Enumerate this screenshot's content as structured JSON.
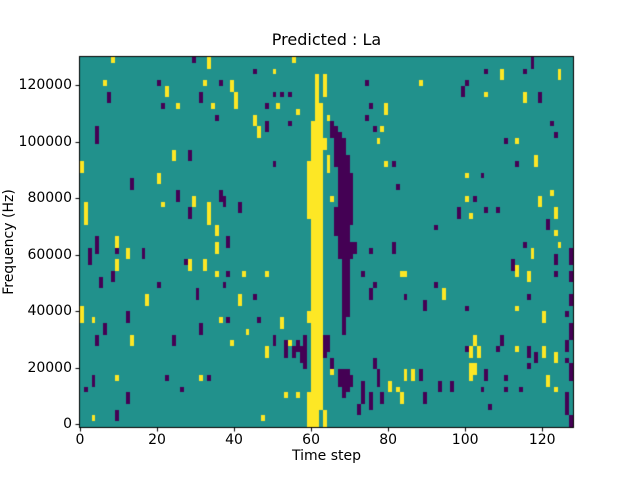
{
  "chart_data": {
    "type": "heatmap",
    "title": "Predicted : La",
    "xlabel": "Time step",
    "ylabel": "Frequency (Hz)",
    "grid_cols": 128,
    "grid_rows": 64,
    "xlim": [
      0,
      128
    ],
    "ylim": [
      -1024,
      130048
    ],
    "xticks": [
      0,
      20,
      40,
      60,
      80,
      100,
      120
    ],
    "yticks": [
      0,
      20000,
      40000,
      60000,
      80000,
      100000,
      120000
    ],
    "grid": false,
    "legend": "none",
    "colors": {
      "background": "#21918c",
      "low": "#440154",
      "high": "#fde725",
      "spine": "#000000",
      "figure_background": "#ffffff"
    },
    "cells": {
      "note": "runs are [column, first_row_from_top, last_row_from_top] on the 128x64 grid",
      "yellow_runs": [
        [
          61,
          3,
          63
        ],
        [
          62,
          8,
          60
        ],
        [
          60,
          11,
          63
        ],
        [
          63,
          3,
          6
        ],
        [
          63,
          14,
          15
        ],
        [
          63,
          61,
          63
        ],
        [
          59,
          18,
          27
        ],
        [
          59,
          44,
          45
        ],
        [
          59,
          58,
          63
        ],
        [
          64,
          10,
          10
        ],
        [
          64,
          17,
          19
        ],
        [
          65,
          24,
          24
        ],
        [
          65,
          54,
          54
        ],
        [
          8,
          0,
          0
        ],
        [
          33,
          0,
          1
        ],
        [
          55,
          0,
          0
        ],
        [
          50,
          2,
          2
        ],
        [
          6,
          4,
          4
        ],
        [
          32,
          4,
          4
        ],
        [
          39,
          4,
          5
        ],
        [
          22,
          5,
          6
        ],
        [
          40,
          6,
          8
        ],
        [
          25,
          8,
          8
        ],
        [
          34,
          8,
          8
        ],
        [
          51,
          8,
          8
        ],
        [
          56,
          9,
          9
        ],
        [
          45,
          10,
          11
        ],
        [
          46,
          12,
          13
        ],
        [
          24,
          16,
          17
        ],
        [
          0,
          18,
          19
        ],
        [
          20,
          20,
          21
        ],
        [
          29,
          24,
          25
        ],
        [
          21,
          25,
          25
        ],
        [
          1,
          25,
          28
        ],
        [
          33,
          25,
          28
        ],
        [
          35,
          29,
          30
        ],
        [
          9,
          31,
          32
        ],
        [
          35,
          32,
          33
        ],
        [
          12,
          33,
          34
        ],
        [
          9,
          35,
          36
        ],
        [
          28,
          35,
          36
        ],
        [
          32,
          35,
          36
        ],
        [
          35,
          37,
          37
        ],
        [
          42,
          37,
          37
        ],
        [
          48,
          37,
          37
        ],
        [
          17,
          41,
          42
        ],
        [
          41,
          41,
          42
        ],
        [
          0,
          43,
          45
        ],
        [
          3,
          45,
          45
        ],
        [
          36,
          45,
          45
        ],
        [
          52,
          45,
          46
        ],
        [
          43,
          47,
          47
        ],
        [
          13,
          48,
          49
        ],
        [
          39,
          49,
          49
        ],
        [
          54,
          49,
          49
        ],
        [
          48,
          50,
          51
        ],
        [
          9,
          55,
          55
        ],
        [
          31,
          55,
          55
        ],
        [
          53,
          58,
          58
        ],
        [
          56,
          58,
          58
        ],
        [
          3,
          62,
          62
        ],
        [
          47,
          62,
          62
        ],
        [
          88,
          4,
          4
        ],
        [
          109,
          2,
          3
        ],
        [
          124,
          2,
          3
        ],
        [
          105,
          6,
          6
        ],
        [
          115,
          6,
          7
        ],
        [
          79,
          8,
          9
        ],
        [
          78,
          12,
          12
        ],
        [
          77,
          14,
          14
        ],
        [
          113,
          14,
          14
        ],
        [
          79,
          18,
          18
        ],
        [
          118,
          17,
          18
        ],
        [
          100,
          20,
          20
        ],
        [
          100,
          24,
          24
        ],
        [
          101,
          27,
          27
        ],
        [
          119,
          24,
          25
        ],
        [
          122,
          23,
          23
        ],
        [
          123,
          26,
          27
        ],
        [
          123,
          30,
          30
        ],
        [
          117,
          33,
          34
        ],
        [
          124,
          32,
          32
        ],
        [
          83,
          37,
          37
        ],
        [
          84,
          37,
          37
        ],
        [
          113,
          36,
          37
        ],
        [
          116,
          37,
          38
        ],
        [
          94,
          40,
          41
        ],
        [
          113,
          43,
          43
        ],
        [
          120,
          44,
          45
        ],
        [
          102,
          48,
          49
        ],
        [
          101,
          50,
          51
        ],
        [
          103,
          50,
          51
        ],
        [
          113,
          50,
          50
        ],
        [
          120,
          50,
          51
        ],
        [
          123,
          51,
          52
        ],
        [
          101,
          53,
          55
        ],
        [
          102,
          53,
          54
        ],
        [
          121,
          55,
          56
        ],
        [
          123,
          57,
          57
        ],
        [
          82,
          57,
          57
        ],
        [
          80,
          56,
          57
        ],
        [
          84,
          54,
          55
        ],
        [
          86,
          54,
          55
        ],
        [
          83,
          58,
          59
        ]
      ],
      "purple_runs": [
        [
          65,
          11,
          13
        ],
        [
          66,
          12,
          18
        ],
        [
          66,
          26,
          30
        ],
        [
          67,
          13,
          34
        ],
        [
          68,
          14,
          47
        ],
        [
          69,
          17,
          44
        ],
        [
          70,
          20,
          28
        ],
        [
          70,
          32,
          34
        ],
        [
          71,
          32,
          33
        ],
        [
          63,
          48,
          51
        ],
        [
          64,
          48,
          50
        ],
        [
          58,
          48,
          52
        ],
        [
          58,
          53,
          53
        ],
        [
          65,
          52,
          53
        ],
        [
          67,
          54,
          56
        ],
        [
          68,
          54,
          58
        ],
        [
          69,
          54,
          57
        ],
        [
          70,
          55,
          56
        ],
        [
          73,
          37,
          37
        ],
        [
          75,
          33,
          33
        ],
        [
          76,
          39,
          39
        ],
        [
          75,
          40,
          41
        ],
        [
          73,
          56,
          59
        ],
        [
          72,
          60,
          61
        ],
        [
          75,
          58,
          60
        ],
        [
          76,
          52,
          53
        ],
        [
          77,
          54,
          56
        ],
        [
          78,
          58,
          59
        ],
        [
          74,
          4,
          4
        ],
        [
          74,
          10,
          10
        ],
        [
          75,
          8,
          8
        ],
        [
          76,
          12,
          12
        ],
        [
          29,
          0,
          0
        ],
        [
          45,
          2,
          2
        ],
        [
          20,
          4,
          4
        ],
        [
          36,
          4,
          4
        ],
        [
          7,
          6,
          7
        ],
        [
          31,
          6,
          7
        ],
        [
          50,
          6,
          6
        ],
        [
          52,
          6,
          6
        ],
        [
          54,
          6,
          6
        ],
        [
          21,
          8,
          8
        ],
        [
          48,
          8,
          8
        ],
        [
          35,
          10,
          10
        ],
        [
          48,
          11,
          12
        ],
        [
          54,
          11,
          11
        ],
        [
          4,
          12,
          14
        ],
        [
          28,
          16,
          17
        ],
        [
          50,
          18,
          18
        ],
        [
          13,
          21,
          22
        ],
        [
          25,
          23,
          24
        ],
        [
          36,
          23,
          24
        ],
        [
          37,
          24,
          25
        ],
        [
          41,
          25,
          26
        ],
        [
          28,
          26,
          27
        ],
        [
          4,
          31,
          33
        ],
        [
          38,
          31,
          32
        ],
        [
          2,
          33,
          35
        ],
        [
          9,
          33,
          33
        ],
        [
          16,
          33,
          34
        ],
        [
          27,
          35,
          35
        ],
        [
          8,
          37,
          38
        ],
        [
          5,
          38,
          39
        ],
        [
          38,
          37,
          37
        ],
        [
          20,
          39,
          39
        ],
        [
          37,
          39,
          39
        ],
        [
          30,
          40,
          41
        ],
        [
          45,
          41,
          41
        ],
        [
          12,
          44,
          45
        ],
        [
          38,
          45,
          45
        ],
        [
          46,
          45,
          45
        ],
        [
          6,
          46,
          47
        ],
        [
          31,
          46,
          47
        ],
        [
          4,
          48,
          49
        ],
        [
          24,
          48,
          49
        ],
        [
          50,
          48,
          49
        ],
        [
          53,
          49,
          51
        ],
        [
          55,
          50,
          51
        ],
        [
          56,
          49,
          50
        ],
        [
          57,
          50,
          52
        ],
        [
          3,
          55,
          56
        ],
        [
          22,
          55,
          55
        ],
        [
          33,
          55,
          55
        ],
        [
          1,
          57,
          57
        ],
        [
          26,
          57,
          57
        ],
        [
          12,
          58,
          59
        ],
        [
          9,
          61,
          62
        ],
        [
          117,
          0,
          1
        ],
        [
          105,
          2,
          2
        ],
        [
          115,
          2,
          2
        ],
        [
          100,
          4,
          4
        ],
        [
          99,
          5,
          6
        ],
        [
          119,
          6,
          7
        ],
        [
          110,
          14,
          14
        ],
        [
          122,
          11,
          11
        ],
        [
          123,
          13,
          13
        ],
        [
          81,
          18,
          18
        ],
        [
          113,
          18,
          18
        ],
        [
          82,
          22,
          22
        ],
        [
          104,
          20,
          20
        ],
        [
          102,
          24,
          24
        ],
        [
          98,
          26,
          27
        ],
        [
          105,
          26,
          26
        ],
        [
          108,
          26,
          26
        ],
        [
          92,
          29,
          29
        ],
        [
          121,
          28,
          29
        ],
        [
          81,
          32,
          33
        ],
        [
          115,
          32,
          32
        ],
        [
          127,
          33,
          35
        ],
        [
          112,
          35,
          36
        ],
        [
          123,
          34,
          35
        ],
        [
          123,
          37,
          37
        ],
        [
          127,
          37,
          38
        ],
        [
          92,
          39,
          39
        ],
        [
          84,
          41,
          41
        ],
        [
          116,
          41,
          41
        ],
        [
          127,
          41,
          42
        ],
        [
          89,
          42,
          43
        ],
        [
          100,
          43,
          43
        ],
        [
          126,
          44,
          44
        ],
        [
          127,
          46,
          48
        ],
        [
          109,
          48,
          49
        ],
        [
          100,
          50,
          50
        ],
        [
          108,
          50,
          50
        ],
        [
          116,
          50,
          51
        ],
        [
          118,
          51,
          52
        ],
        [
          126,
          49,
          50
        ],
        [
          126,
          52,
          52
        ],
        [
          116,
          53,
          53
        ],
        [
          105,
          54,
          55
        ],
        [
          110,
          55,
          55
        ],
        [
          88,
          54,
          55
        ],
        [
          89,
          58,
          59
        ],
        [
          93,
          56,
          57
        ],
        [
          96,
          56,
          57
        ],
        [
          104,
          57,
          57
        ],
        [
          110,
          57,
          57
        ],
        [
          114,
          57,
          57
        ],
        [
          127,
          53,
          55
        ],
        [
          126,
          58,
          61
        ],
        [
          127,
          62,
          63
        ],
        [
          106,
          60,
          60
        ]
      ]
    }
  }
}
